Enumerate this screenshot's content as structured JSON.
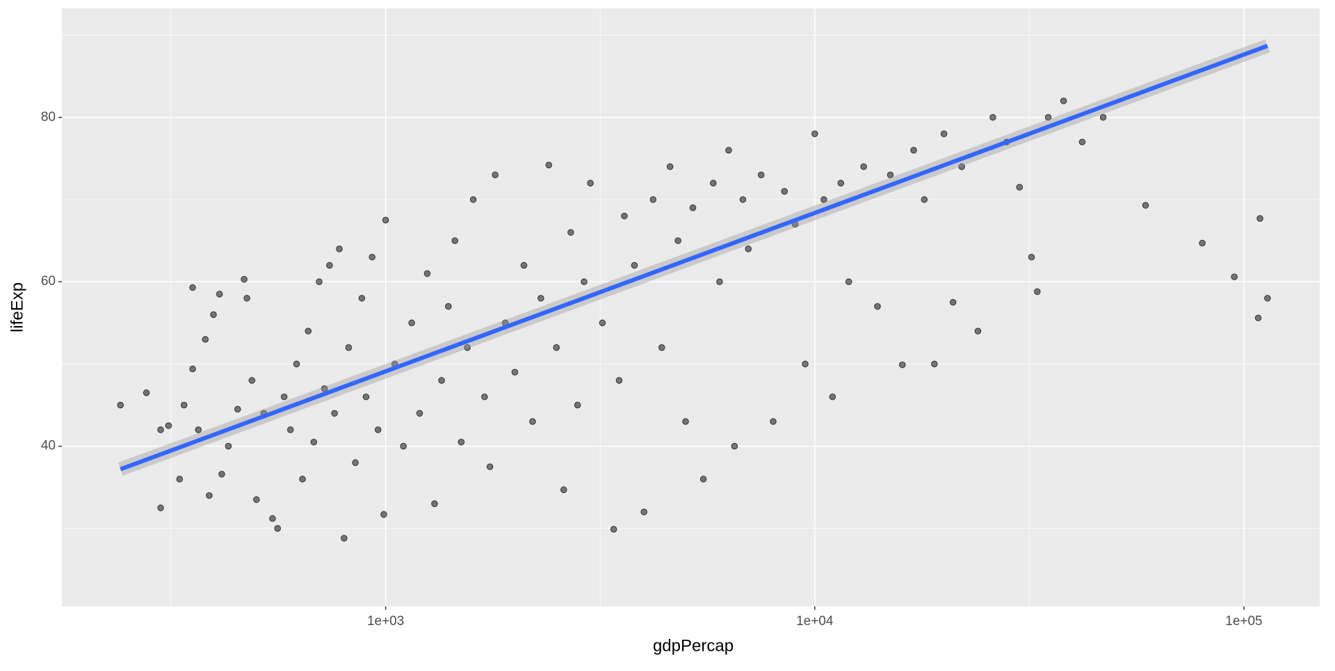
{
  "chart_data": {
    "type": "scatter",
    "x_label": "gdpPercap",
    "y_label": "lifeExp",
    "x_log": true,
    "grid": true,
    "xlim": [
      176,
      150200
    ],
    "ylim": [
      20.52,
      93.26
    ],
    "xticks": [
      {
        "value": 1000,
        "label": "1e+03"
      },
      {
        "value": 10000,
        "label": "1e+04"
      },
      {
        "value": 100000,
        "label": "1e+05"
      }
    ],
    "xminor": [
      316.23,
      3162.28,
      31622.78
    ],
    "yticks": [
      40,
      60,
      80
    ],
    "yminor": [
      30,
      50,
      70,
      90
    ],
    "points": {
      "color": "#000000",
      "x": [
        241,
        277,
        299,
        299,
        312,
        331,
        339,
        355,
        355,
        366,
        380,
        388,
        397,
        410,
        415,
        430,
        452,
        468,
        475,
        488,
        500,
        520,
        545,
        560,
        580,
        600,
        620,
        640,
        660,
        680,
        700,
        720,
        740,
        760,
        780,
        800,
        820,
        850,
        880,
        900,
        930,
        960,
        990,
        1000,
        1050,
        1100,
        1150,
        1200,
        1250,
        1300,
        1350,
        1400,
        1450,
        1500,
        1550,
        1600,
        1700,
        1750,
        1800,
        1900,
        2000,
        2100,
        2200,
        2300,
        2400,
        2500,
        2600,
        2700,
        2800,
        2900,
        3000,
        3200,
        3400,
        3500,
        3600,
        3800,
        4000,
        4200,
        4400,
        4600,
        4800,
        5000,
        5200,
        5500,
        5800,
        6000,
        6300,
        6500,
        6800,
        7000,
        7500,
        8000,
        8500,
        9000,
        9500,
        10000,
        10500,
        11000,
        11500,
        12000,
        13000,
        14000,
        15000,
        16000,
        17000,
        18000,
        19000,
        20000,
        21000,
        22000,
        24000,
        26000,
        28000,
        30000,
        32000,
        33000,
        35000,
        38000,
        42000,
        47000,
        59000,
        80000,
        95000,
        108000,
        109000,
        113500
      ],
      "y": [
        45.0,
        46.5,
        32.5,
        42.0,
        42.5,
        36.0,
        45.0,
        59.3,
        49.4,
        42.0,
        53.0,
        34.0,
        56.0,
        58.5,
        36.6,
        40.0,
        44.5,
        60.3,
        58.0,
        48.0,
        33.5,
        44.0,
        31.2,
        30.0,
        46.0,
        42.0,
        50.0,
        36.0,
        54.0,
        40.5,
        60.0,
        47.0,
        62.0,
        44.0,
        64.0,
        28.8,
        52.0,
        38.0,
        58.0,
        46.0,
        63.0,
        42.0,
        31.7,
        67.5,
        50.0,
        40.0,
        55.0,
        44.0,
        61.0,
        33.0,
        48.0,
        57.0,
        65.0,
        40.5,
        52.0,
        70.0,
        46.0,
        37.5,
        73.0,
        55.0,
        49.0,
        62.0,
        43.0,
        58.0,
        74.2,
        52.0,
        34.7,
        66.0,
        45.0,
        60.0,
        72.0,
        55.0,
        29.9,
        48.0,
        68.0,
        62.0,
        32.0,
        70.0,
        52.0,
        74.0,
        65.0,
        43.0,
        69.0,
        36.0,
        72.0,
        60.0,
        76.0,
        40.0,
        70.0,
        64.0,
        73.0,
        43.0,
        71.0,
        67.0,
        50.0,
        78.0,
        70.0,
        46.0,
        72.0,
        60.0,
        74.0,
        57.0,
        73.0,
        49.9,
        76.0,
        70.0,
        50.0,
        78.0,
        57.5,
        74.0,
        54.0,
        80.0,
        77.0,
        71.5,
        63.0,
        58.8,
        80.0,
        82.0,
        77.0,
        80.0,
        69.3,
        64.7,
        60.6,
        55.6,
        67.7,
        58.0
      ]
    },
    "trend": {
      "color": "#3366ff",
      "x": [
        241,
        113523
      ],
      "y": [
        37.2,
        88.7
      ]
    }
  }
}
